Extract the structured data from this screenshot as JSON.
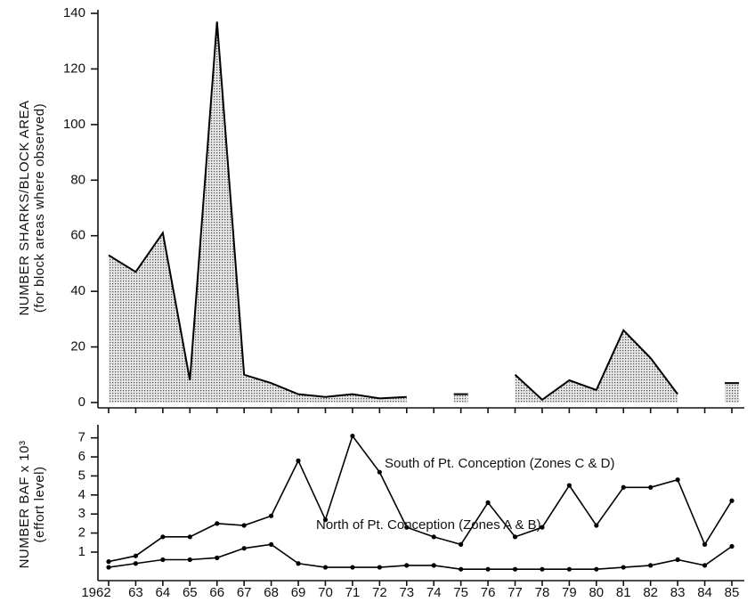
{
  "chart_data": [
    {
      "type": "area",
      "ylabel": "NUMBER SHARKS/BLOCK AREA",
      "ylabel2": "(for block areas where observed)",
      "values": [
        53,
        47,
        61,
        8,
        137,
        10,
        7,
        3,
        2,
        3,
        1.5,
        2,
        null,
        3,
        null,
        10,
        1,
        8,
        4.5,
        26,
        16,
        3,
        null,
        7
      ],
      "ylim": [
        0,
        140
      ],
      "yticks": [
        0,
        20,
        40,
        60,
        80,
        100,
        120,
        140
      ],
      "color": "#000000"
    },
    {
      "type": "line",
      "ylabel": "NUMBER BAF x 10³",
      "ylabel2": "(effort level)",
      "categories": [
        "1962",
        "63",
        "64",
        "65",
        "66",
        "67",
        "68",
        "69",
        "70",
        "71",
        "72",
        "73",
        "74",
        "75",
        "76",
        "77",
        "78",
        "79",
        "80",
        "81",
        "82",
        "83",
        "84",
        "85"
      ],
      "series": [
        {
          "name": "South of Pt. Conception (Zones C & D)",
          "color": "#000000",
          "values": [
            0.5,
            0.8,
            1.8,
            1.8,
            2.5,
            2.4,
            2.9,
            5.8,
            2.7,
            7.1,
            5.2,
            2.3,
            1.8,
            1.4,
            3.6,
            1.8,
            2.3,
            4.5,
            2.4,
            4.4,
            4.4,
            4.8,
            1.4,
            3.7
          ]
        },
        {
          "name": "North of Pt. Conception (Zones A & B)",
          "color": "#000000",
          "values": [
            0.2,
            0.4,
            0.6,
            0.6,
            0.7,
            1.2,
            1.4,
            0.4,
            0.2,
            0.2,
            0.2,
            0.3,
            0.3,
            0.1,
            0.1,
            0.1,
            0.1,
            0.1,
            0.1,
            0.2,
            0.3,
            0.6,
            0.3,
            1.3
          ]
        }
      ],
      "ylim": [
        -0.5,
        7.5
      ],
      "yticks": [
        1,
        2,
        3,
        4,
        5,
        6,
        7
      ]
    }
  ]
}
